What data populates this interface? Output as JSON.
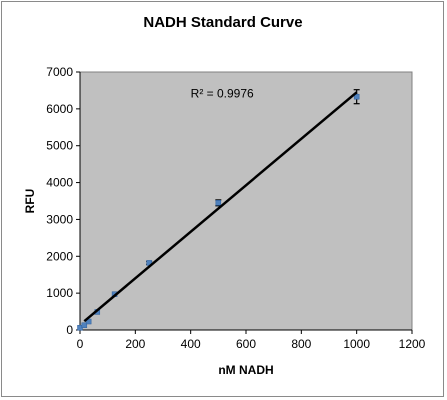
{
  "chart_data": {
    "type": "scatter",
    "title": "NADH Standard Curve",
    "xlabel": "nM NADH",
    "ylabel": "RFU",
    "xlim": [
      0,
      1200
    ],
    "ylim": [
      0,
      7000
    ],
    "x_ticks": [
      0,
      200,
      400,
      600,
      800,
      1000,
      1200
    ],
    "y_ticks": [
      0,
      1000,
      2000,
      3000,
      4000,
      5000,
      6000,
      7000
    ],
    "grid": false,
    "legend": "none",
    "annotation": "R² = 0.9976",
    "plot_background": "#c0c0c0",
    "series": [
      {
        "points": [
          {
            "x": 0,
            "y": 60
          },
          {
            "x": 15.6,
            "y": 130
          },
          {
            "x": 31.25,
            "y": 230
          },
          {
            "x": 62.5,
            "y": 490
          },
          {
            "x": 125,
            "y": 970
          },
          {
            "x": 250,
            "y": 1820
          },
          {
            "x": 500,
            "y": 3450
          },
          {
            "x": 1000,
            "y": 6330
          }
        ],
        "errors": [
          0,
          0,
          0,
          0,
          0,
          40,
          80,
          190
        ],
        "marker_color": "#4f81bd"
      }
    ],
    "trendline": {
      "type": "linear",
      "x": [
        15.6,
        1000
      ],
      "y": [
        240,
        6450
      ],
      "color": "#000000"
    }
  }
}
